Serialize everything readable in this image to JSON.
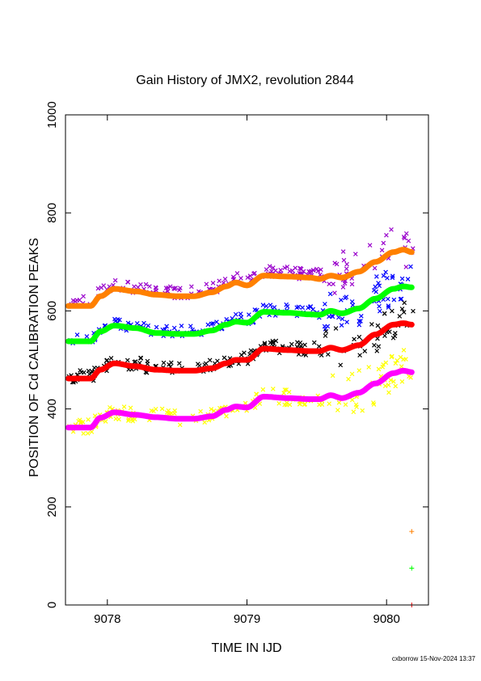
{
  "chart_data": {
    "type": "scatter",
    "title": "Gain History of JMX2, revolution 2844",
    "xlabel": "TIME IN IJD",
    "ylabel": "POSITION OF Cd CALIBRATION PEAKS",
    "xlim": [
      9077.7,
      9080.3
    ],
    "ylim": [
      0,
      1000
    ],
    "xticks": [
      9078,
      9079,
      9080
    ],
    "xtick_labels": [
      "9078",
      "9079",
      "9080"
    ],
    "yticks": [
      0,
      200,
      400,
      600,
      800,
      1000
    ],
    "ytick_labels": [
      "0",
      "200",
      "400",
      "600",
      "800",
      "1000"
    ],
    "grid": false,
    "footer": "cxborrow 15-Nov-2024 13:37",
    "trend_series": [
      {
        "color": "#ff8000",
        "x": [
          9077.72,
          9077.88,
          9077.95,
          9078.05,
          9078.2,
          9078.35,
          9078.5,
          9078.62,
          9078.75,
          9078.85,
          9078.92,
          9079.0,
          9079.12,
          9079.3,
          9079.45,
          9079.52,
          9079.6,
          9079.68,
          9079.8,
          9079.92,
          9080.05,
          9080.12,
          9080.18
        ],
        "y": [
          610,
          610,
          630,
          645,
          640,
          633,
          630,
          630,
          638,
          650,
          658,
          652,
          672,
          670,
          668,
          665,
          672,
          668,
          680,
          700,
          720,
          725,
          720
        ]
      },
      {
        "color": "#00ff00",
        "x": [
          9077.72,
          9077.88,
          9077.95,
          9078.05,
          9078.2,
          9078.35,
          9078.5,
          9078.62,
          9078.75,
          9078.85,
          9078.92,
          9079.0,
          9079.12,
          9079.3,
          9079.45,
          9079.52,
          9079.6,
          9079.68,
          9079.8,
          9079.92,
          9080.05,
          9080.12,
          9080.18
        ],
        "y": [
          538,
          538,
          558,
          570,
          565,
          555,
          553,
          553,
          560,
          572,
          578,
          576,
          598,
          596,
          593,
          592,
          600,
          595,
          605,
          625,
          645,
          650,
          648
        ]
      },
      {
        "color": "#ff0000",
        "x": [
          9077.72,
          9077.88,
          9077.95,
          9078.05,
          9078.2,
          9078.35,
          9078.5,
          9078.62,
          9078.75,
          9078.85,
          9078.92,
          9079.0,
          9079.12,
          9079.3,
          9079.45,
          9079.52,
          9079.6,
          9079.68,
          9079.8,
          9079.92,
          9080.05,
          9080.12,
          9080.18
        ],
        "y": [
          462,
          462,
          480,
          493,
          487,
          480,
          478,
          478,
          483,
          493,
          500,
          500,
          523,
          520,
          518,
          518,
          525,
          520,
          530,
          552,
          572,
          575,
          572
        ]
      },
      {
        "color": "#ff00ff",
        "x": [
          9077.72,
          9077.88,
          9077.95,
          9078.05,
          9078.2,
          9078.35,
          9078.5,
          9078.62,
          9078.75,
          9078.85,
          9078.92,
          9079.0,
          9079.12,
          9079.3,
          9079.45,
          9079.52,
          9079.6,
          9079.68,
          9079.8,
          9079.92,
          9080.05,
          9080.12,
          9080.18
        ],
        "y": [
          362,
          362,
          382,
          393,
          388,
          383,
          380,
          380,
          385,
          398,
          405,
          403,
          425,
          422,
          420,
          420,
          428,
          422,
          433,
          452,
          473,
          478,
          475
        ]
      }
    ],
    "scatter_series": [
      {
        "color": "#9900cc",
        "offset": 8,
        "spread": 12,
        "spread_late": 45
      },
      {
        "color": "#0000ff",
        "offset": 5,
        "spread": 12,
        "spread_late": 40
      },
      {
        "color": "#000000",
        "offset": 5,
        "spread": 14,
        "spread_late": 40
      },
      {
        "color": "#ffff00",
        "offset": 2,
        "spread": 16,
        "spread_late": 45
      }
    ],
    "extra_points": [
      {
        "color": "#ff8000",
        "x": 9080.18,
        "y": 150
      },
      {
        "color": "#00ff00",
        "x": 9080.18,
        "y": 75
      },
      {
        "color": "#ff0000",
        "x": 9080.18,
        "y": 0
      }
    ]
  }
}
